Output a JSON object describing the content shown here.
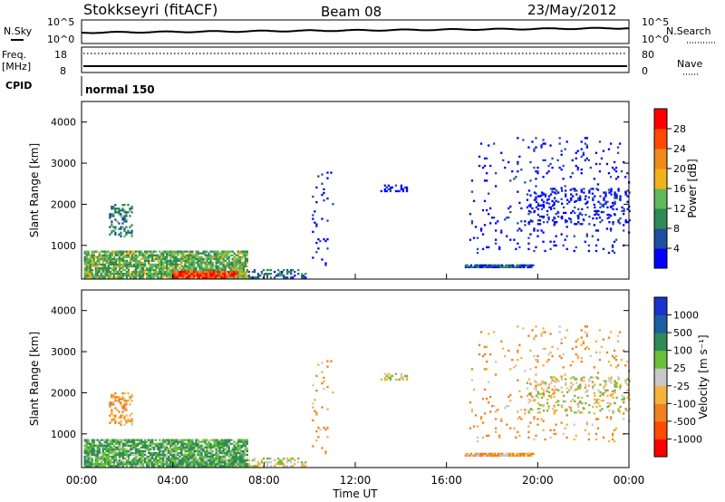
{
  "header": {
    "station": "Stokkseyri (fitACF)",
    "beam": "Beam 08",
    "date": "23/May/2012"
  },
  "top_panels": {
    "nsky_label": "N.Sky",
    "nsky_ticks": [
      "10^5",
      "10^0"
    ],
    "nsearch_label": "N.Search",
    "freq_label_1": "Freq.",
    "freq_label_2": "[MHz]",
    "freq_ticks": [
      "18",
      "8"
    ],
    "nave_label": "Nave",
    "nave_ticks": [
      "80",
      "0"
    ],
    "cpid_label": "CPID",
    "cpid_value": "normal 150"
  },
  "colors": {
    "power_scale": [
      "#0000ff",
      "#1f4fa0",
      "#2e8a57",
      "#5fb85a",
      "#f2b21a",
      "#f08a1a",
      "#ff4a00",
      "#ff0000"
    ],
    "velocity_scale": [
      "#1a33cc",
      "#1a5fa0",
      "#2e8a57",
      "#6cbf3a",
      "#c8c8c8",
      "#f4b33a",
      "#f08020",
      "#ff4a00",
      "#ff0000"
    ]
  },
  "chart_data": [
    {
      "type": "heatmap",
      "panel": "power",
      "ylabel": "Slant Range [km]",
      "xlim": [
        "00:00",
        "24:00"
      ],
      "ylim": [
        180,
        4500
      ],
      "yticks": [
        "1000",
        "2000",
        "3000",
        "4000"
      ],
      "colorbar": {
        "label": "Power [dB]",
        "ticks": [
          "4",
          "8",
          "12",
          "16",
          "20",
          "24",
          "28"
        ],
        "range": [
          0,
          32
        ]
      },
      "regions": [
        {
          "t": [
            0.1,
            7.3
          ],
          "r": [
            200,
            850
          ],
          "level": 13,
          "density": 0.85
        },
        {
          "t": [
            4.0,
            6.8
          ],
          "r": [
            200,
            350
          ],
          "level": 27,
          "density": 0.9
        },
        {
          "t": [
            1.2,
            2.2
          ],
          "r": [
            1200,
            2000
          ],
          "level": 9,
          "density": 0.4
        },
        {
          "t": [
            7.3,
            9.8
          ],
          "r": [
            200,
            420
          ],
          "level": 8,
          "density": 0.4
        },
        {
          "t": [
            10.1,
            11.0
          ],
          "r": [
            500,
            3000
          ],
          "level": 3,
          "density": 0.05
        },
        {
          "t": [
            13.1,
            14.3
          ],
          "r": [
            2300,
            2450
          ],
          "level": 2,
          "density": 0.35
        },
        {
          "t": [
            16.8,
            19.8
          ],
          "r": [
            450,
            520
          ],
          "level": 6,
          "density": 0.9
        },
        {
          "t": [
            17.0,
            24.0
          ],
          "r": [
            800,
            3600
          ],
          "level": 2,
          "density": 0.05
        },
        {
          "t": [
            19.5,
            24.0
          ],
          "r": [
            1500,
            2400
          ],
          "level": 2,
          "density": 0.18
        }
      ]
    },
    {
      "type": "heatmap",
      "panel": "velocity",
      "xlabel": "Time UT",
      "ylabel": "Slant Range [km]",
      "xlim": [
        "00:00",
        "24:00"
      ],
      "ylim": [
        180,
        4500
      ],
      "xticks": [
        "00:00",
        "04:00",
        "08:00",
        "12:00",
        "16:00",
        "20:00",
        "00:00"
      ],
      "yticks": [
        "1000",
        "2000",
        "3000",
        "4000"
      ],
      "colorbar": {
        "label": "Velocity [m s⁻¹]",
        "ticks": [
          "1000",
          "500",
          "100",
          "25",
          "-25",
          "-100",
          "-500",
          "-1000"
        ]
      },
      "regions": [
        {
          "t": [
            0.1,
            7.3
          ],
          "r": [
            200,
            850
          ],
          "vel": 100,
          "density": 0.85
        },
        {
          "t": [
            4.0,
            6.8
          ],
          "r": [
            200,
            350
          ],
          "vel": 100,
          "density": 0.9
        },
        {
          "t": [
            1.2,
            2.2
          ],
          "r": [
            1200,
            2000
          ],
          "vel": -100,
          "density": 0.4
        },
        {
          "t": [
            7.3,
            9.8
          ],
          "r": [
            200,
            420
          ],
          "vel": 0,
          "density": 0.4
        },
        {
          "t": [
            10.1,
            11.0
          ],
          "r": [
            500,
            3000
          ],
          "vel": -100,
          "density": 0.05
        },
        {
          "t": [
            13.1,
            14.3
          ],
          "r": [
            2300,
            2450
          ],
          "vel": 0,
          "density": 0.35
        },
        {
          "t": [
            16.8,
            19.8
          ],
          "r": [
            450,
            520
          ],
          "vel": -100,
          "density": 0.9
        },
        {
          "t": [
            17.0,
            24.0
          ],
          "r": [
            800,
            3600
          ],
          "vel": -100,
          "density": 0.05
        },
        {
          "t": [
            19.5,
            24.0
          ],
          "r": [
            1500,
            2400
          ],
          "vel": 0,
          "density": 0.18
        }
      ]
    }
  ]
}
